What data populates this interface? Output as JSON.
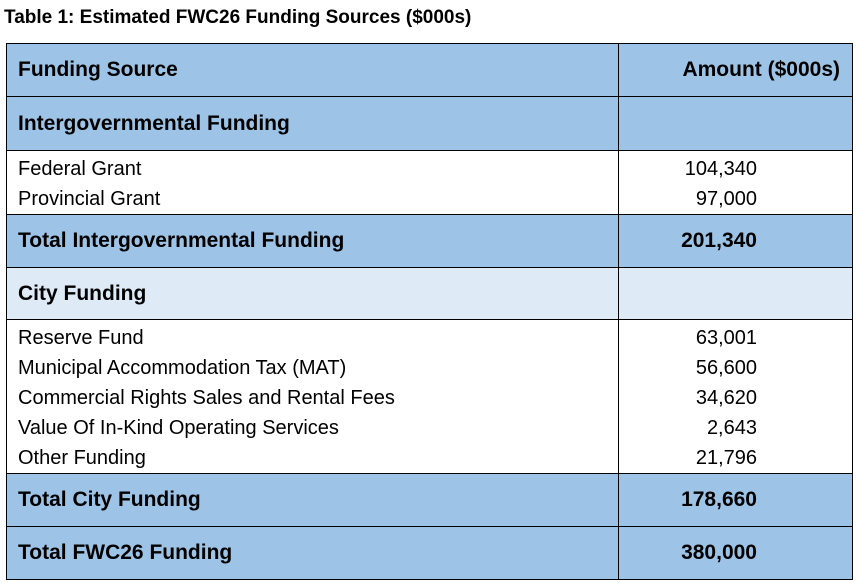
{
  "title": "Table 1: Estimated FWC26 Funding Sources ($000s)",
  "columns": {
    "source": "Funding Source",
    "amount": "Amount ($000s)"
  },
  "intergovernmental": {
    "heading": "Intergovernmental Funding",
    "items": [
      {
        "label": "Federal Grant",
        "amount": "104,340"
      },
      {
        "label": "Provincial Grant",
        "amount": "97,000"
      }
    ],
    "total_label": "Total Intergovernmental Funding",
    "total_amount": "201,340"
  },
  "city": {
    "heading": "City Funding",
    "items": [
      {
        "label": "Reserve Fund",
        "amount": "63,001"
      },
      {
        "label": "Municipal Accommodation Tax (MAT)",
        "amount": "56,600"
      },
      {
        "label": "Commercial Rights Sales and Rental Fees",
        "amount": "34,620"
      },
      {
        "label": "Value Of In-Kind Operating Services",
        "amount": "2,643"
      },
      {
        "label": "Other Funding",
        "amount": "21,796"
      }
    ],
    "total_label": "Total City Funding",
    "total_amount": "178,660"
  },
  "grand_total": {
    "label": "Total FWC26 Funding",
    "amount": "380,000"
  },
  "colors": {
    "header_fill": "#9dc3e6",
    "subheader_fill": "#deebf7"
  }
}
